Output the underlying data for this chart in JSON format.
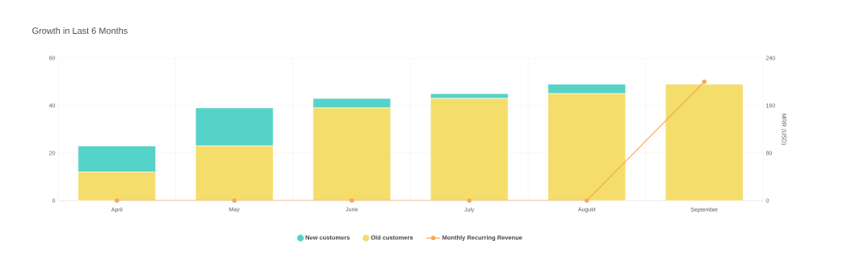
{
  "chart_data": {
    "type": "bar",
    "title": "Growth in Last 6 Months",
    "y2label": "MRR (USD)",
    "categories": [
      "April",
      "May",
      "June",
      "July",
      "August",
      "September"
    ],
    "stacked": true,
    "series": [
      {
        "name": "Old customers",
        "color": "#f4dd6a",
        "values": [
          12,
          23,
          39,
          43,
          45,
          49
        ]
      },
      {
        "name": "New customers",
        "color": "#56d3c8",
        "values": [
          11,
          16,
          4,
          2,
          4,
          0
        ]
      },
      {
        "name": "Monthly Recurring Revenue",
        "type": "line",
        "axis": "y2",
        "color": "#f5a85a",
        "marker": "circle",
        "values": [
          0,
          0,
          0,
          0,
          0,
          200
        ]
      }
    ],
    "ylim": [
      0,
      60
    ],
    "yticks": [
      0,
      20,
      40,
      60
    ],
    "y2lim": [
      0,
      240
    ],
    "y2ticks": [
      0,
      80,
      160,
      240
    ],
    "grid": true,
    "legend": "bottom"
  }
}
